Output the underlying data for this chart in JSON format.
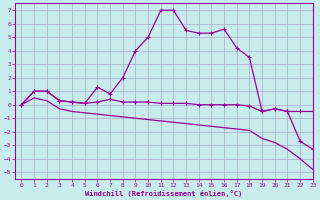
{
  "xlabel": "Windchill (Refroidissement éolien,°C)",
  "bg_color": "#c8ecec",
  "line_color": "#990099",
  "grid_color": "#aaaacc",
  "xlim": [
    -0.5,
    23
  ],
  "ylim": [
    -5.5,
    7.5
  ],
  "xticks": [
    0,
    1,
    2,
    3,
    4,
    5,
    6,
    7,
    8,
    9,
    10,
    11,
    12,
    13,
    14,
    15,
    16,
    17,
    18,
    19,
    20,
    21,
    22,
    23
  ],
  "yticks": [
    -5,
    -4,
    -3,
    -2,
    -1,
    0,
    1,
    2,
    3,
    4,
    5,
    6,
    7
  ],
  "series1_x": [
    0,
    1,
    2,
    3,
    4,
    5,
    6,
    7,
    8,
    9,
    10,
    11,
    12,
    13,
    14,
    15,
    16,
    17,
    18,
    19,
    20,
    21,
    22,
    23
  ],
  "series1_y": [
    0.0,
    1.0,
    1.0,
    0.3,
    0.2,
    0.1,
    0.2,
    0.4,
    0.2,
    0.2,
    0.2,
    0.1,
    0.1,
    0.1,
    0.0,
    0.0,
    0.0,
    0.0,
    -0.1,
    -0.5,
    -0.3,
    -0.5,
    -0.5,
    -0.5
  ],
  "series2_x": [
    0,
    1,
    2,
    3,
    4,
    5,
    6,
    7,
    8,
    9,
    10,
    11,
    12,
    13,
    14,
    15,
    16,
    17,
    18,
    19,
    20,
    21,
    22,
    23
  ],
  "series2_y": [
    0.0,
    1.0,
    1.0,
    0.3,
    0.2,
    0.1,
    1.3,
    0.8,
    2.0,
    4.0,
    5.0,
    7.0,
    7.0,
    5.5,
    5.3,
    5.3,
    5.6,
    4.2,
    3.5,
    -0.5,
    -0.3,
    -0.5,
    -2.7,
    -3.3
  ],
  "series3_x": [
    0,
    1,
    2,
    3,
    4,
    5,
    6,
    7,
    8,
    9,
    10,
    11,
    12,
    13,
    14,
    15,
    16,
    17,
    18,
    19,
    20,
    21,
    22,
    23
  ],
  "series3_y": [
    0.0,
    0.5,
    0.3,
    -0.3,
    -0.5,
    -0.6,
    -0.7,
    -0.8,
    -0.9,
    -1.0,
    -1.1,
    -1.2,
    -1.3,
    -1.4,
    -1.5,
    -1.6,
    -1.7,
    -1.8,
    -1.9,
    -2.5,
    -2.8,
    -3.3,
    -4.0,
    -4.8
  ]
}
